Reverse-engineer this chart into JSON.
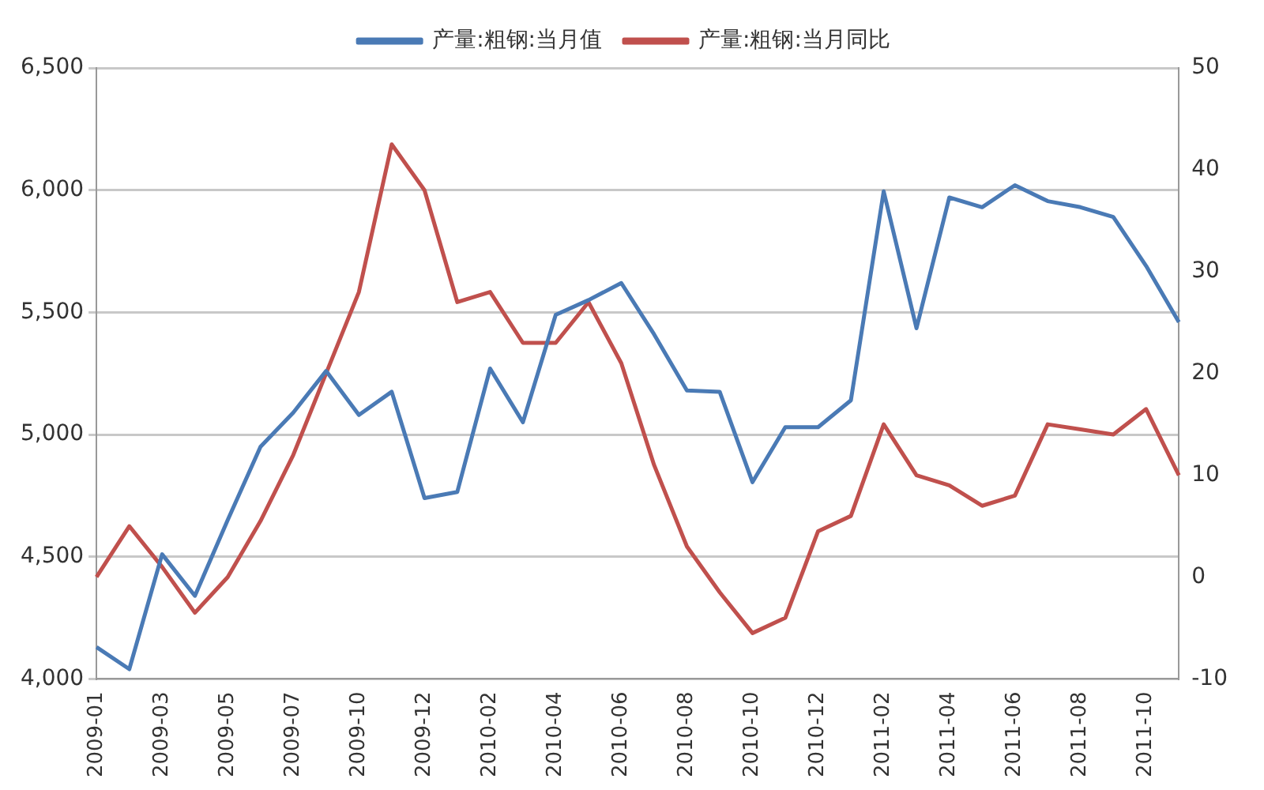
{
  "chart_data": {
    "type": "line",
    "categories": [
      "2009-01",
      null,
      "2009-03",
      null,
      "2009-05",
      null,
      "2009-07",
      null,
      "2009-10",
      null,
      "2009-12",
      null,
      "2010-02",
      null,
      "2010-04",
      null,
      "2010-06",
      null,
      "2010-08",
      null,
      "2010-10",
      null,
      "2010-12",
      null,
      "2011-02",
      null,
      "2011-04",
      null,
      "2011-06",
      null,
      "2011-08",
      null,
      "2011-10",
      null
    ],
    "series": [
      {
        "name": "产量:粗钢:当月值",
        "color": "#4a7ab5",
        "values": [
          4130,
          4040,
          4510,
          4340,
          4650,
          4950,
          5090,
          5260,
          5080,
          5175,
          4740,
          4765,
          5270,
          5050,
          5490,
          5550,
          5620,
          5410,
          5180,
          5175,
          4805,
          5030,
          5030,
          5140,
          5995,
          5435,
          5970,
          5930,
          6020,
          5955,
          5930,
          5890,
          5690,
          5460
        ]
      },
      {
        "name": "产量:粗钢:当月同比",
        "color": "#c0504d",
        "axis": "y2",
        "values": [
          0,
          5,
          1,
          -3.5,
          0,
          5.5,
          12,
          20,
          28,
          42.5,
          38,
          27,
          28,
          23,
          23,
          27,
          21,
          11,
          3,
          -1.5,
          -5.5,
          -4,
          4.5,
          6,
          15,
          10,
          9,
          7,
          8,
          15,
          14.5,
          14,
          16.5,
          10
        ]
      }
    ],
    "ylim": [
      4000,
      6500
    ],
    "yticks": [
      {
        "value": 4000,
        "label": "4,000"
      },
      {
        "value": 4500,
        "label": "4,500"
      },
      {
        "value": 5000,
        "label": "5,000"
      },
      {
        "value": 5500,
        "label": "5,500"
      },
      {
        "value": 6000,
        "label": "6,000"
      },
      {
        "value": 6500,
        "label": "6,500"
      }
    ],
    "y2lim": [
      -10,
      50
    ],
    "y2ticks": [
      -10,
      0,
      10,
      20,
      30,
      40,
      50
    ],
    "grid": "y",
    "legend": "top",
    "marker": "none",
    "line_style": "solid"
  }
}
